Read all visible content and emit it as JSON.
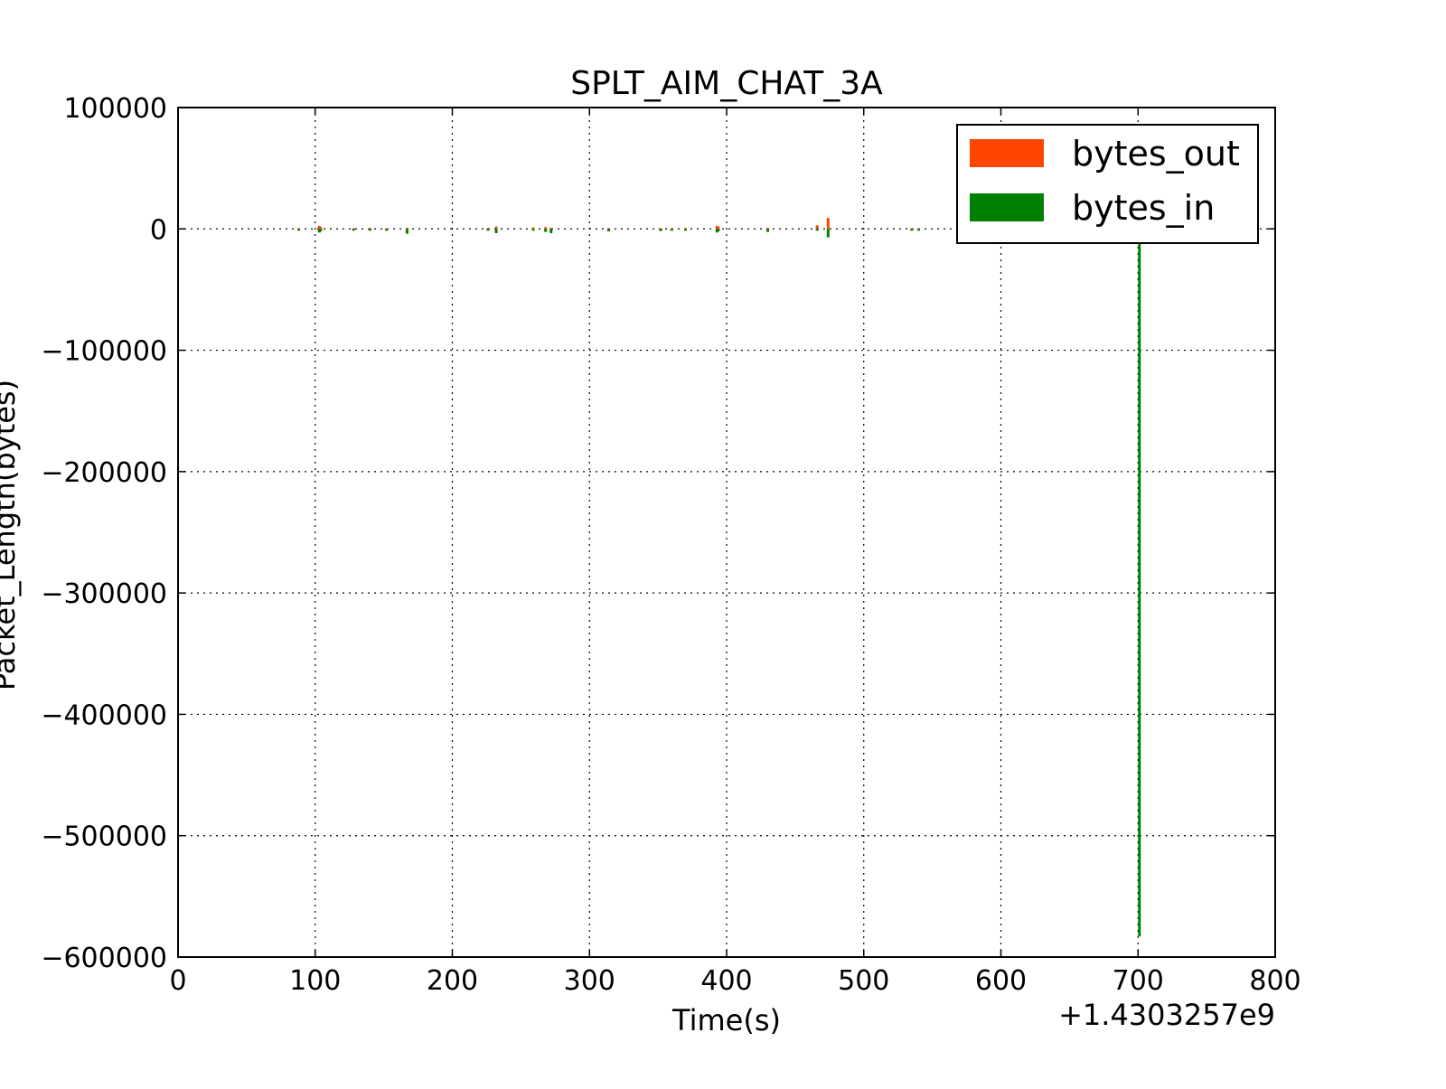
{
  "chart_data": {
    "type": "bar",
    "title": "SPLT_AIM_CHAT_3A",
    "xlabel": "Time(s)",
    "ylabel": "Packet_Length(bytes)",
    "x_offset_label": "+1.4303257e9",
    "xlim": [
      0,
      800
    ],
    "ylim": [
      -600000,
      100000
    ],
    "x_ticks": [
      0,
      100,
      200,
      300,
      400,
      500,
      600,
      700,
      800
    ],
    "x_tick_labels": [
      "0",
      "100",
      "200",
      "300",
      "400",
      "500",
      "600",
      "700",
      "800"
    ],
    "y_ticks": [
      100000,
      0,
      -100000,
      -200000,
      -300000,
      -400000,
      -500000,
      -600000
    ],
    "y_tick_labels": [
      "100000",
      "0",
      "−100000",
      "−200000",
      "−300000",
      "−400000",
      "−500000",
      "−600000"
    ],
    "grid": true,
    "legend_position": "top-right",
    "series": [
      {
        "name": "bytes_out",
        "color": "#ff4500",
        "x": [
          88,
          103,
          104,
          128,
          140,
          152,
          167,
          226,
          232,
          259,
          268,
          272,
          314,
          352,
          360,
          370,
          393,
          394,
          430,
          466,
          474,
          535,
          540
        ],
        "values": [
          600,
          2500,
          1500,
          500,
          700,
          400,
          900,
          800,
          2000,
          1200,
          1500,
          900,
          700,
          600,
          500,
          700,
          2500,
          1800,
          900,
          3000,
          9000,
          500,
          400
        ]
      },
      {
        "name": "bytes_in",
        "color": "#008000",
        "x": [
          88,
          103,
          104,
          128,
          140,
          152,
          167,
          226,
          232,
          259,
          268,
          272,
          314,
          352,
          360,
          370,
          393,
          394,
          430,
          466,
          474,
          535,
          540,
          701
        ],
        "values": [
          -800,
          -3000,
          -2000,
          -600,
          -900,
          -500,
          -4000,
          -1500,
          -3500,
          -1500,
          -2500,
          -3500,
          -2000,
          -1800,
          -800,
          -900,
          -3000,
          -2000,
          -2500,
          -1000,
          -7000,
          -600,
          -500,
          -583000
        ]
      }
    ]
  }
}
